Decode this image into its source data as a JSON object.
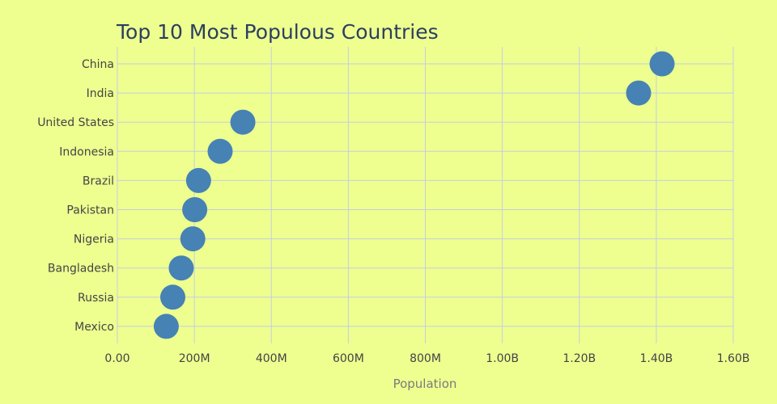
{
  "chart_data": {
    "type": "scatter",
    "title": "Top 10 Most Populous Countries",
    "xlabel": "Population",
    "ylabel": "",
    "xlim": [
      0,
      1600000000
    ],
    "x_ticks": [
      0,
      200000000,
      400000000,
      600000000,
      800000000,
      1000000000,
      1200000000,
      1400000000,
      1600000000
    ],
    "x_tick_labels": [
      "0.00",
      "200M",
      "400M",
      "600M",
      "800M",
      "1.00B",
      "1.20B",
      "1.40B",
      "1.60B"
    ],
    "grid": true,
    "categories": [
      "China",
      "India",
      "United States",
      "Indonesia",
      "Brazil",
      "Pakistan",
      "Nigeria",
      "Bangladesh",
      "Russia",
      "Mexico"
    ],
    "values": [
      1415000000,
      1354000000,
      326000000,
      267000000,
      211000000,
      201000000,
      196000000,
      166000000,
      144000000,
      127000000
    ],
    "marker_color": "#4682b4",
    "background_color": "#eeff90"
  }
}
